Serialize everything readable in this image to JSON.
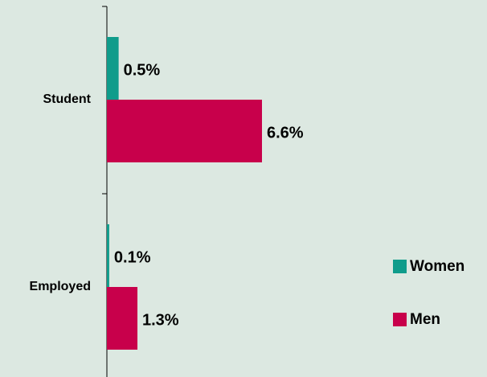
{
  "chart_data": {
    "type": "hbar",
    "categories": [
      "Student",
      "Employed"
    ],
    "series": [
      {
        "name": "Women",
        "color": "#0f9c8b",
        "values": [
          0.5,
          0.1
        ],
        "value_labels": [
          "0.5%",
          "0.1%"
        ]
      },
      {
        "name": "Men",
        "color": "#c8004b",
        "values": [
          6.6,
          1.3
        ],
        "value_labels": [
          "6.6%",
          "1.3%"
        ]
      }
    ],
    "legend": "right"
  }
}
